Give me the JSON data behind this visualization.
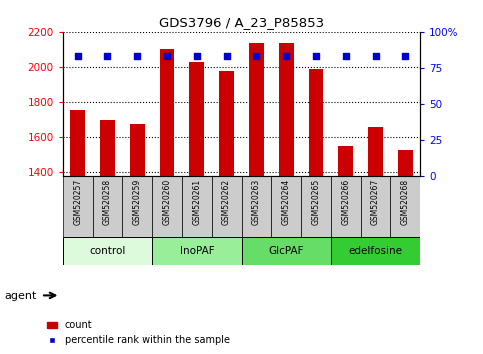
{
  "title": "GDS3796 / A_23_P85853",
  "samples": [
    "GSM520257",
    "GSM520258",
    "GSM520259",
    "GSM520260",
    "GSM520261",
    "GSM520262",
    "GSM520263",
    "GSM520264",
    "GSM520265",
    "GSM520266",
    "GSM520267",
    "GSM520268"
  ],
  "counts": [
    1755,
    1700,
    1675,
    2100,
    2030,
    1975,
    2135,
    2135,
    1990,
    1550,
    1655,
    1525
  ],
  "percentiles": [
    83,
    83,
    83,
    83,
    83,
    83,
    83,
    83,
    83,
    83,
    83,
    83
  ],
  "bar_bottom": 1380,
  "ylim_left": [
    1380,
    2200
  ],
  "ylim_right": [
    0,
    100
  ],
  "yticks_left": [
    1400,
    1600,
    1800,
    2000,
    2200
  ],
  "yticks_right": [
    0,
    25,
    50,
    75,
    100
  ],
  "ylabel_right_ticks": [
    "0",
    "25",
    "50",
    "75",
    "100%"
  ],
  "bar_color": "#cc0000",
  "dot_color": "#0000cc",
  "tick_bg_color": "#cccccc",
  "groups": [
    {
      "label": "control",
      "indices": [
        0,
        1,
        2
      ],
      "color": "#ddfadd"
    },
    {
      "label": "InoPAF",
      "indices": [
        3,
        4,
        5
      ],
      "color": "#99ee99"
    },
    {
      "label": "GlcPAF",
      "indices": [
        6,
        7,
        8
      ],
      "color": "#66dd66"
    },
    {
      "label": "edelfosine",
      "indices": [
        9,
        10,
        11
      ],
      "color": "#33cc33"
    }
  ],
  "agent_label": "agent",
  "legend_count_label": "count",
  "legend_pct_label": "percentile rank within the sample",
  "bg_color": "#ffffff",
  "grid_color": "#000000",
  "bar_width": 0.5
}
